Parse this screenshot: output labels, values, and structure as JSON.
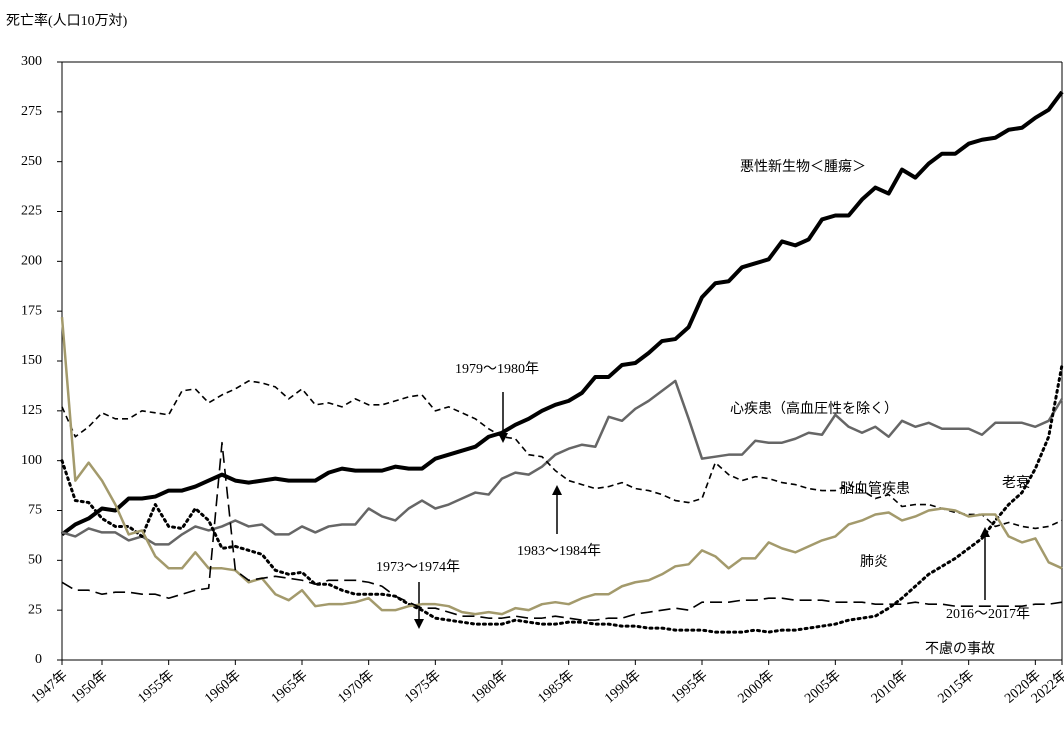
{
  "chart_data": {
    "type": "line",
    "y_label": "死亡率(人口10万対)",
    "x": [
      1947,
      1948,
      1949,
      1950,
      1951,
      1952,
      1953,
      1954,
      1955,
      1956,
      1957,
      1958,
      1959,
      1960,
      1961,
      1962,
      1963,
      1964,
      1965,
      1966,
      1967,
      1968,
      1969,
      1970,
      1971,
      1972,
      1973,
      1974,
      1975,
      1976,
      1977,
      1978,
      1979,
      1980,
      1981,
      1982,
      1983,
      1984,
      1985,
      1986,
      1987,
      1988,
      1989,
      1990,
      1991,
      1992,
      1993,
      1994,
      1995,
      1996,
      1997,
      1998,
      1999,
      2000,
      2001,
      2002,
      2003,
      2004,
      2005,
      2006,
      2007,
      2008,
      2009,
      2010,
      2011,
      2012,
      2013,
      2014,
      2015,
      2016,
      2017,
      2018,
      2019,
      2020,
      2021,
      2022
    ],
    "xlim": [
      1947,
      2022
    ],
    "xticks": [
      {
        "value": 1947,
        "label": "1947年"
      },
      {
        "value": 1950,
        "label": "1950年"
      },
      {
        "value": 1955,
        "label": "1955年"
      },
      {
        "value": 1960,
        "label": "1960年"
      },
      {
        "value": 1965,
        "label": "1965年"
      },
      {
        "value": 1970,
        "label": "1970年"
      },
      {
        "value": 1975,
        "label": "1975年"
      },
      {
        "value": 1980,
        "label": "1980年"
      },
      {
        "value": 1985,
        "label": "1985年"
      },
      {
        "value": 1990,
        "label": "1990年"
      },
      {
        "value": 1995,
        "label": "1995年"
      },
      {
        "value": 2000,
        "label": "2000年"
      },
      {
        "value": 2005,
        "label": "2005年"
      },
      {
        "value": 2010,
        "label": "2010年"
      },
      {
        "value": 2015,
        "label": "2015年"
      },
      {
        "value": 2020,
        "label": "2020年"
      },
      {
        "value": 2022,
        "label": "2022年"
      }
    ],
    "ylim": [
      0,
      300
    ],
    "yticks": [
      0,
      25,
      50,
      75,
      100,
      125,
      150,
      175,
      200,
      225,
      250,
      275,
      300
    ],
    "grid": false,
    "series": [
      {
        "name": "悪性新生物＜腫瘍＞",
        "color": "#000000",
        "linestyle": "solid",
        "linewidth": 4,
        "values": [
          63,
          68,
          71,
          76,
          75,
          81,
          81,
          82,
          85,
          85,
          87,
          90,
          93,
          90,
          89,
          90,
          91,
          90,
          90,
          90,
          94,
          96,
          95,
          95,
          95,
          97,
          96,
          96,
          101,
          103,
          105,
          107,
          112,
          114,
          118,
          121,
          125,
          128,
          130,
          134,
          142,
          142,
          148,
          149,
          154,
          160,
          161,
          167,
          182,
          189,
          190,
          197,
          199,
          201,
          210,
          208,
          211,
          221,
          223,
          223,
          231,
          237,
          234,
          246,
          242,
          249,
          254,
          254,
          259,
          261,
          262,
          266,
          267,
          272,
          276,
          285
        ]
      },
      {
        "name": "心疾患（高血圧性を除く）",
        "color": "#666666",
        "linestyle": "solid",
        "linewidth": 2.5,
        "values": [
          64,
          62,
          66,
          64,
          64,
          60,
          62,
          58,
          58,
          63,
          67,
          65,
          67,
          70,
          67,
          68,
          63,
          63,
          67,
          64,
          67,
          68,
          68,
          76,
          72,
          70,
          76,
          80,
          76,
          78,
          81,
          84,
          83,
          91,
          94,
          93,
          97,
          103,
          106,
          108,
          107,
          122,
          120,
          126,
          130,
          135,
          140,
          121,
          101,
          102,
          103,
          103,
          110,
          109,
          109,
          111,
          114,
          113,
          123,
          117,
          114,
          117,
          112,
          120,
          117,
          119,
          116,
          116,
          116,
          113,
          119,
          119,
          119,
          117,
          120,
          131
        ]
      },
      {
        "name": "脳血管疾患",
        "color": "#000000",
        "linestyle": "dashed",
        "linewidth": 1.6,
        "values": [
          127,
          112,
          117,
          124,
          121,
          121,
          125,
          124,
          123,
          135,
          136,
          129,
          133,
          136,
          140,
          139,
          137,
          131,
          136,
          128,
          129,
          127,
          131,
          128,
          128,
          130,
          132,
          133,
          125,
          127,
          124,
          121,
          116,
          112,
          111,
          103,
          102,
          95,
          90,
          88,
          86,
          87,
          89,
          86,
          85,
          83,
          80,
          79,
          81,
          99,
          93,
          90,
          92,
          91,
          89,
          88,
          86,
          85,
          85,
          88,
          85,
          81,
          83,
          77,
          78,
          78,
          76,
          74,
          73,
          73,
          67,
          69,
          67,
          66,
          67,
          70
        ]
      },
      {
        "name": "老衰",
        "color": "#000000",
        "linestyle": "dotted",
        "linewidth": 3,
        "values": [
          100,
          80,
          79,
          71,
          67,
          67,
          62,
          78,
          67,
          66,
          76,
          70,
          56,
          57,
          55,
          53,
          45,
          43,
          44,
          38,
          38,
          35,
          33,
          33,
          33,
          32,
          28,
          25,
          21,
          20,
          19,
          18,
          18,
          18,
          20,
          19,
          18,
          18,
          19,
          19,
          18,
          18,
          17,
          17,
          16,
          16,
          15,
          15,
          15,
          14,
          14,
          14,
          15,
          14,
          15,
          15,
          16,
          17,
          18,
          20,
          21,
          22,
          26,
          31,
          37,
          43,
          47,
          51,
          56,
          61,
          70,
          78,
          84,
          96,
          112,
          148
        ]
      },
      {
        "name": "肺炎",
        "color": "#a39a6c",
        "linestyle": "solid",
        "linewidth": 2.5,
        "values": [
          172,
          90,
          99,
          90,
          78,
          63,
          65,
          52,
          46,
          46,
          54,
          46,
          46,
          45,
          39,
          41,
          33,
          30,
          35,
          27,
          28,
          28,
          29,
          31,
          25,
          25,
          27,
          28,
          28,
          27,
          24,
          23,
          24,
          23,
          26,
          25,
          28,
          29,
          28,
          31,
          33,
          33,
          37,
          39,
          40,
          43,
          47,
          48,
          55,
          52,
          46,
          51,
          51,
          59,
          56,
          54,
          57,
          60,
          62,
          68,
          70,
          73,
          74,
          70,
          72,
          75,
          76,
          75,
          72,
          73,
          73,
          62,
          59,
          61,
          49,
          46
        ]
      },
      {
        "name": "不慮の事故",
        "color": "#000000",
        "linestyle": "longdash",
        "linewidth": 1.6,
        "values": [
          39,
          35,
          35,
          33,
          34,
          34,
          33,
          33,
          31,
          33,
          35,
          36,
          109,
          45,
          40,
          41,
          42,
          41,
          40,
          38,
          40,
          40,
          40,
          39,
          37,
          32,
          29,
          26,
          26,
          24,
          22,
          22,
          21,
          21,
          22,
          21,
          21,
          22,
          21,
          20,
          20,
          21,
          21,
          23,
          24,
          25,
          26,
          25,
          29,
          29,
          29,
          30,
          30,
          31,
          31,
          30,
          30,
          30,
          29,
          29,
          29,
          28,
          28,
          28,
          29,
          28,
          28,
          27,
          27,
          27,
          27,
          27,
          27,
          28,
          28,
          29
        ]
      }
    ],
    "annotations": [
      {
        "text": "1979～1980年"
      },
      {
        "text": "1983～1984年"
      },
      {
        "text": "1973～1974年"
      },
      {
        "text": "2016～2017年"
      }
    ]
  }
}
